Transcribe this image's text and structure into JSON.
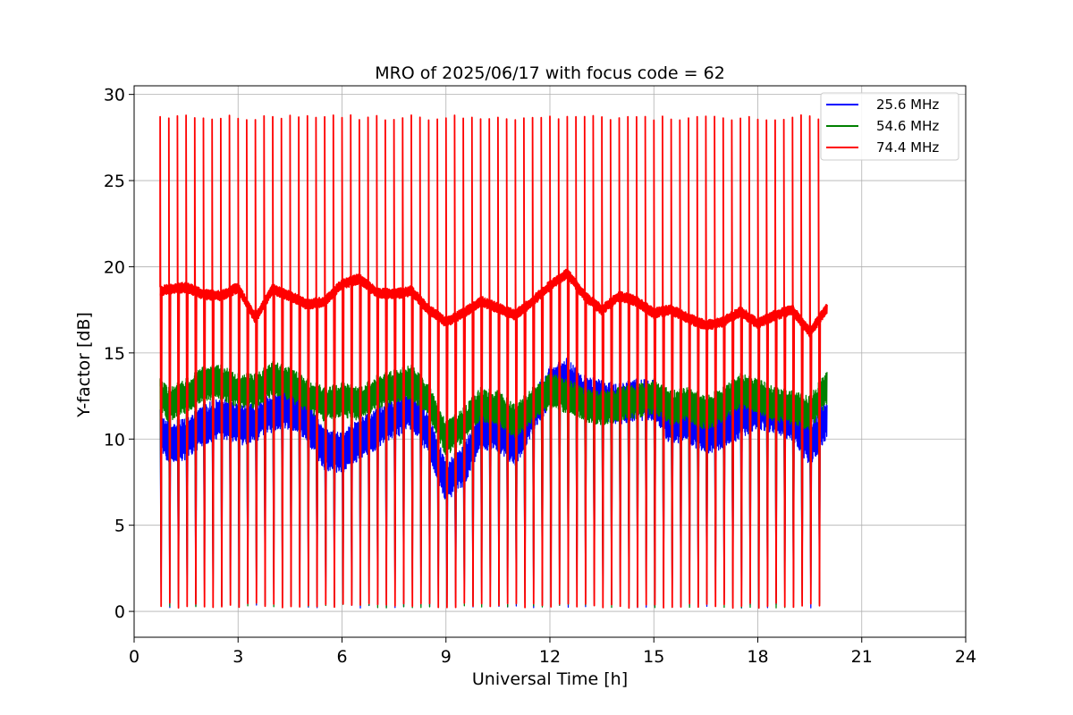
{
  "chart_data": {
    "type": "line",
    "title": "MRO of 2025/06/17 with focus code = 62",
    "xlabel": "Universal Time [h]",
    "ylabel": "Y-factor [dB]",
    "xlim": [
      0,
      24
    ],
    "ylim": [
      -1.5,
      30.5
    ],
    "xticks": [
      0,
      3,
      6,
      9,
      12,
      15,
      18,
      21,
      24
    ],
    "yticks": [
      0,
      5,
      10,
      15,
      20,
      25,
      30
    ],
    "grid": true,
    "legend_position": "top-right",
    "cycle": {
      "start_h": 0.75,
      "end_h": 20.0,
      "period_h": 0.25,
      "spike_peak_dB": 28.8,
      "spike_floor_dB": 0.2
    },
    "series": [
      {
        "name": "25.6 MHz",
        "color": "#0000ff",
        "band_half_width_dB": 1.2,
        "x": [
          0.75,
          1.0,
          1.5,
          2.0,
          2.5,
          3.0,
          3.5,
          4.0,
          4.5,
          5.0,
          5.5,
          6.0,
          6.5,
          7.0,
          7.5,
          8.0,
          8.5,
          9.0,
          9.5,
          10.0,
          10.5,
          11.0,
          11.5,
          12.0,
          12.5,
          13.0,
          13.5,
          14.0,
          14.5,
          15.0,
          15.5,
          16.0,
          16.5,
          17.0,
          17.5,
          18.0,
          18.5,
          19.0,
          19.5,
          20.0
        ],
        "y": [
          10.5,
          9.8,
          10.0,
          10.8,
          11.2,
          10.8,
          11.0,
          11.6,
          11.8,
          11.0,
          9.4,
          9.2,
          10.0,
          10.6,
          11.2,
          11.8,
          10.2,
          7.5,
          8.4,
          10.6,
          10.5,
          9.6,
          11.5,
          13.0,
          13.5,
          12.5,
          12.2,
          12.0,
          12.3,
          12.2,
          10.8,
          11.0,
          10.2,
          10.6,
          11.2,
          11.8,
          11.5,
          11.0,
          9.6,
          11.2
        ]
      },
      {
        "name": "54.6 MHz",
        "color": "#008000",
        "band_half_width_dB": 1.0,
        "x": [
          0.75,
          1.0,
          1.5,
          2.0,
          2.5,
          3.0,
          3.5,
          4.0,
          4.5,
          5.0,
          5.5,
          6.0,
          6.5,
          7.0,
          7.5,
          8.0,
          8.5,
          9.0,
          9.5,
          10.0,
          10.5,
          11.0,
          11.5,
          12.0,
          12.5,
          13.0,
          13.5,
          14.0,
          14.5,
          15.0,
          15.5,
          16.0,
          16.5,
          17.0,
          17.5,
          18.0,
          18.5,
          19.0,
          19.5,
          20.0
        ],
        "y": [
          12.5,
          12.0,
          12.5,
          13.2,
          13.3,
          12.8,
          12.8,
          13.5,
          13.2,
          12.5,
          12.0,
          12.3,
          12.0,
          12.7,
          13.0,
          13.3,
          12.2,
          10.0,
          10.8,
          12.0,
          11.8,
          11.0,
          12.0,
          12.8,
          12.5,
          12.0,
          11.8,
          12.0,
          12.2,
          12.5,
          11.8,
          12.0,
          11.5,
          12.0,
          12.8,
          12.5,
          12.0,
          11.8,
          11.5,
          13.0
        ]
      },
      {
        "name": "74.4 MHz",
        "color": "#ff0000",
        "band_half_width_dB": 0.3,
        "x": [
          0.75,
          1.0,
          1.5,
          2.0,
          2.5,
          3.0,
          3.5,
          4.0,
          4.5,
          5.0,
          5.5,
          6.0,
          6.5,
          7.0,
          7.5,
          8.0,
          8.5,
          9.0,
          9.5,
          10.0,
          10.5,
          11.0,
          11.5,
          12.0,
          12.5,
          13.0,
          13.5,
          14.0,
          14.5,
          15.0,
          15.5,
          16.0,
          16.5,
          17.0,
          17.5,
          18.0,
          18.5,
          19.0,
          19.5,
          20.0
        ],
        "y": [
          18.6,
          18.7,
          18.8,
          18.4,
          18.3,
          18.8,
          17.0,
          18.7,
          18.3,
          17.8,
          18.0,
          19.0,
          19.3,
          18.5,
          18.4,
          18.6,
          17.5,
          16.8,
          17.3,
          18.0,
          17.6,
          17.2,
          18.0,
          18.9,
          19.6,
          18.3,
          17.5,
          18.3,
          18.0,
          17.3,
          17.5,
          17.0,
          16.6,
          16.8,
          17.4,
          16.7,
          17.2,
          17.5,
          16.2,
          17.6
        ]
      }
    ]
  }
}
